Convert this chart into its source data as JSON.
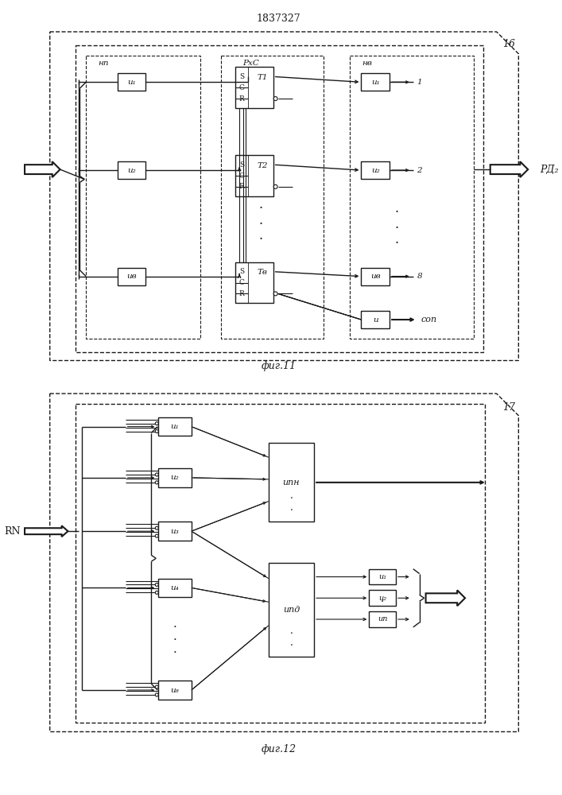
{
  "title": "1837327",
  "fig1_id": "16",
  "fig1_cap": "фиг.11",
  "fig2_id": "17",
  "fig2_cap": "фиг.12",
  "fig1_np": "нп",
  "fig1_rxs": "РхС",
  "fig1_nv": "нв",
  "rd2": "РД₂",
  "cop": "соп",
  "rn": "RN",
  "ipn_label": "ипн",
  "ipd_label": "ипд",
  "T1": "T1",
  "T2": "T2",
  "Tv": "Tв",
  "i1": "и₁",
  "i2": "и₂",
  "iv": "ив",
  "i": "и",
  "i3": "и₃",
  "i4": "и₄",
  "i8": "и₈",
  "in_label": "ип",
  "num1": "1",
  "num2": "2",
  "num8": "8"
}
